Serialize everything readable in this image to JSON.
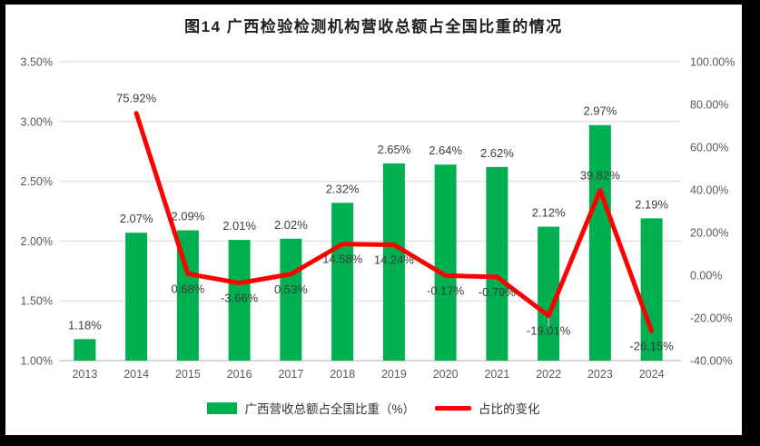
{
  "title": "图14 广西检验检测机构营收总额占全国比重的情况",
  "legend": {
    "bar_label": "广西营收总额占全国比重（%）",
    "line_label": "占比的变化"
  },
  "colors": {
    "bar": "#00B050",
    "line": "#FF0000",
    "grid": "#D9D9D9",
    "axis_line": "#BFBFBF",
    "axis_text": "#595959",
    "data_label": "#3D3D3D",
    "leader": "#A6A6A6",
    "frame": "#000000",
    "background": "#FFFFFF"
  },
  "chart_data": {
    "type": "combo-bar-line",
    "title": "图14 广西检验检测机构营收总额占全国比重的情况",
    "categories": [
      "2013",
      "2014",
      "2015",
      "2016",
      "2017",
      "2018",
      "2019",
      "2020",
      "2021",
      "2022",
      "2023",
      "2024"
    ],
    "series": [
      {
        "name": "广西营收总额占全国比重（%）",
        "type": "bar",
        "axis": "left",
        "values": [
          1.18,
          2.07,
          2.09,
          2.01,
          2.02,
          2.32,
          2.65,
          2.64,
          2.62,
          2.12,
          2.97,
          2.19
        ],
        "labels": [
          "1.18%",
          "2.07%",
          "2.09%",
          "2.01%",
          "2.02%",
          "2.32%",
          "2.65%",
          "2.64%",
          "2.62%",
          "2.12%",
          "2.97%",
          "2.19%"
        ]
      },
      {
        "name": "占比的变化",
        "type": "line",
        "axis": "right",
        "values": [
          null,
          75.92,
          0.68,
          -3.66,
          0.53,
          14.58,
          14.24,
          -0.17,
          -0.79,
          -19.01,
          39.82,
          -26.15
        ],
        "labels": [
          "",
          "75.92%",
          "0.68%",
          "-3.66%",
          "0.53%",
          "14.58%",
          "14.24%",
          "-0.17%",
          "-0.79%",
          "-19.01%",
          "39.82%",
          "-26.15%"
        ],
        "label_side": [
          "",
          "above",
          "below",
          "below",
          "below",
          "below",
          "below",
          "below",
          "below",
          "below",
          "above",
          "below"
        ],
        "leader_line_at": "2022"
      }
    ],
    "left_axis": {
      "min": 1.0,
      "max": 3.5,
      "tick_values": [
        1.0,
        1.5,
        2.0,
        2.5,
        3.0,
        3.5
      ],
      "tick_labels": [
        "1.00%",
        "1.50%",
        "2.00%",
        "2.50%",
        "3.00%",
        "3.50%"
      ]
    },
    "right_axis": {
      "min": -40,
      "max": 100,
      "tick_values": [
        -40,
        -20,
        0,
        20,
        40,
        60,
        80,
        100
      ],
      "tick_labels": [
        "-40.00%",
        "-20.00%",
        "0.00%",
        "20.00%",
        "40.00%",
        "60.00%",
        "80.00%",
        "100.00%"
      ]
    },
    "grid": true,
    "legend_position": "bottom"
  }
}
